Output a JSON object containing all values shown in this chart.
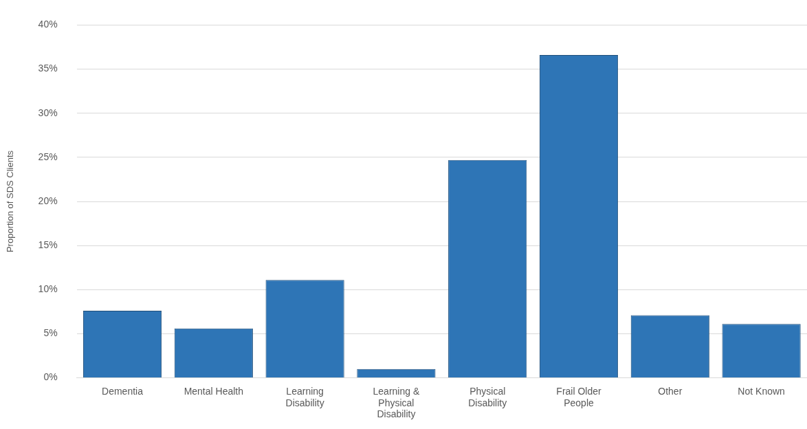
{
  "chart_data": {
    "type": "bar",
    "ylabel": "Proportion of SDS Clients",
    "categories": [
      "Dementia",
      "Mental Health",
      "Learning Disability",
      "Learning & Physical Disability",
      "Physical Disability",
      "Frail Older People",
      "Other",
      "Not Known"
    ],
    "values": [
      7.6,
      5.6,
      11.1,
      1.0,
      24.7,
      36.6,
      7.1,
      6.1
    ],
    "color": "#2e75b6",
    "ylim": [
      0,
      40
    ],
    "yticks": [
      {
        "value": 0,
        "label": "0%"
      },
      {
        "value": 5,
        "label": "5%"
      },
      {
        "value": 10,
        "label": "10%"
      },
      {
        "value": 15,
        "label": "15%"
      },
      {
        "value": 20,
        "label": "20%"
      },
      {
        "value": 25,
        "label": "25%"
      },
      {
        "value": 30,
        "label": "30%"
      },
      {
        "value": 35,
        "label": "35%"
      },
      {
        "value": 40,
        "label": "40%"
      }
    ],
    "grid": "y"
  }
}
